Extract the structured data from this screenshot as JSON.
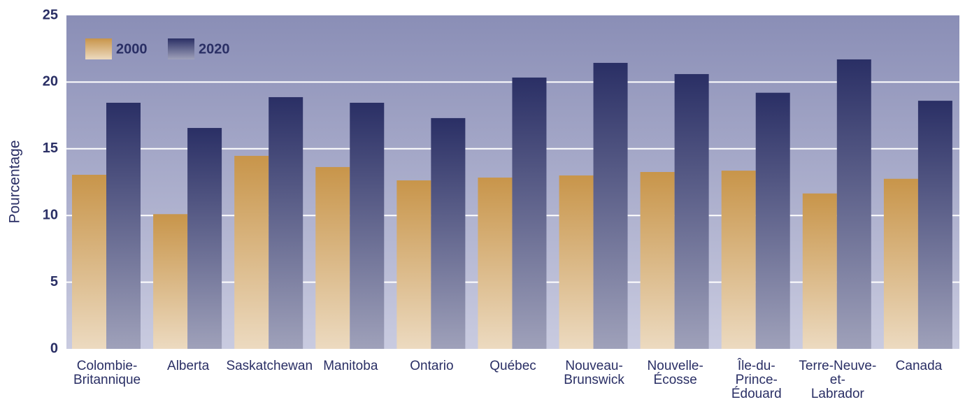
{
  "chart_data": {
    "type": "bar",
    "categories": [
      "Colombie-\nBritannique",
      "Alberta",
      "Saskatchewan",
      "Manitoba",
      "Ontario",
      "Québec",
      "Nouveau-\nBrunswick",
      "Nouvelle-\nÉcosse",
      "Île-du-\nPrince-\nÉdouard",
      "Terre-Neuve-\net-\nLabrador",
      "Canada"
    ],
    "series": [
      {
        "name": "2000",
        "color": "#c8954a",
        "values": [
          13.05,
          10.1,
          14.47,
          13.63,
          12.63,
          12.84,
          13.0,
          13.26,
          13.36,
          11.65,
          12.75
        ]
      },
      {
        "name": "2020",
        "color": "#2a2f65",
        "values": [
          18.45,
          16.56,
          18.87,
          18.45,
          17.3,
          20.34,
          21.44,
          20.6,
          19.2,
          21.7,
          18.6
        ]
      }
    ],
    "ylabel": "Pourcentage",
    "ylim": [
      0,
      25
    ],
    "yticks": [
      0,
      5,
      10,
      15,
      20,
      25
    ],
    "grid": true,
    "legend": "top-left"
  }
}
